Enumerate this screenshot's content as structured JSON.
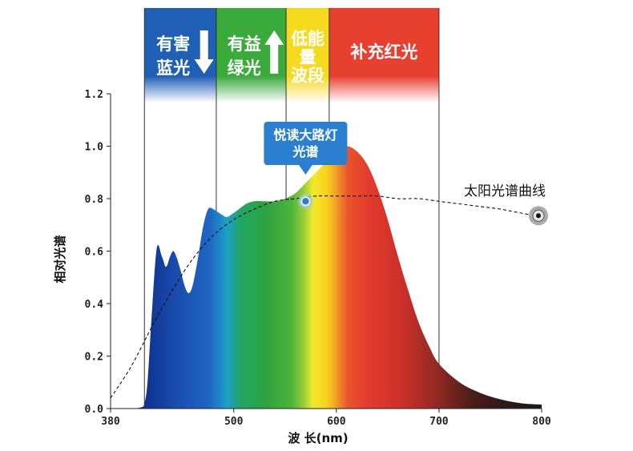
{
  "chart_data": {
    "type": "area",
    "xlabel": "波 长(nm)",
    "ylabel": "相对光谱",
    "xlim": [
      380,
      800
    ],
    "ylim": [
      0,
      1.2
    ],
    "x_ticks": [
      "380",
      "500",
      "600",
      "700",
      "800"
    ],
    "y_ticks": [
      "0.0",
      "0.2",
      "0.4",
      "0.6",
      "0.8",
      "1.0",
      "1.2"
    ],
    "grid": false,
    "bands": [
      {
        "label_lines": [
          "有害",
          "蓝光"
        ],
        "arrow": "down",
        "x_start": 413,
        "x_end": 483,
        "color": "#1f5fb5"
      },
      {
        "label_lines": [
          "有益",
          "绿光"
        ],
        "arrow": "up",
        "x_start": 483,
        "x_end": 551,
        "color": "#3aab3a"
      },
      {
        "label_lines": [
          "低能",
          "量",
          "波段"
        ],
        "arrow": "",
        "x_start": 551,
        "x_end": 593,
        "color": "#f6da1e"
      },
      {
        "label_lines": [
          "补充红光"
        ],
        "arrow": "",
        "x_start": 593,
        "x_end": 700,
        "color": "#e8402f"
      }
    ],
    "series": [
      {
        "name": "悦读大路灯光谱",
        "x": [
          380,
          400,
          410,
          413,
          416,
          420,
          425,
          430,
          434,
          438,
          441,
          444,
          448,
          452,
          456,
          460,
          465,
          470,
          475,
          480,
          484,
          488,
          493,
          498,
          505,
          512,
          520,
          530,
          540,
          550,
          560,
          570,
          580,
          590,
          600,
          610,
          620,
          630,
          640,
          650,
          660,
          670,
          680,
          690,
          700,
          720,
          740,
          760,
          780,
          800
        ],
        "y": [
          0.0,
          0.0,
          0.005,
          0.02,
          0.1,
          0.35,
          0.61,
          0.58,
          0.54,
          0.58,
          0.6,
          0.58,
          0.53,
          0.47,
          0.44,
          0.47,
          0.57,
          0.69,
          0.76,
          0.76,
          0.75,
          0.74,
          0.73,
          0.74,
          0.76,
          0.78,
          0.79,
          0.79,
          0.79,
          0.8,
          0.82,
          0.86,
          0.9,
          0.94,
          0.98,
          1.0,
          0.98,
          0.93,
          0.84,
          0.72,
          0.58,
          0.45,
          0.33,
          0.24,
          0.17,
          0.1,
          0.06,
          0.035,
          0.02,
          0.015
        ]
      },
      {
        "name": "太阳光谱曲线",
        "x": [
          380,
          400,
          420,
          440,
          460,
          480,
          500,
          520,
          540,
          560,
          580,
          600,
          620,
          640,
          660,
          680,
          700,
          720,
          740,
          760,
          780,
          800
        ],
        "y": [
          0.04,
          0.16,
          0.31,
          0.45,
          0.57,
          0.66,
          0.72,
          0.76,
          0.79,
          0.8,
          0.81,
          0.81,
          0.81,
          0.81,
          0.8,
          0.8,
          0.79,
          0.78,
          0.77,
          0.76,
          0.745,
          0.73
        ]
      }
    ],
    "annotations": [
      {
        "text_lines": [
          "悦读大路灯",
          "光谱"
        ],
        "x": 570,
        "y": 0.79
      },
      {
        "text_lines": [
          "太阳光谱曲线"
        ],
        "x": 800,
        "y": 0.735
      }
    ]
  }
}
